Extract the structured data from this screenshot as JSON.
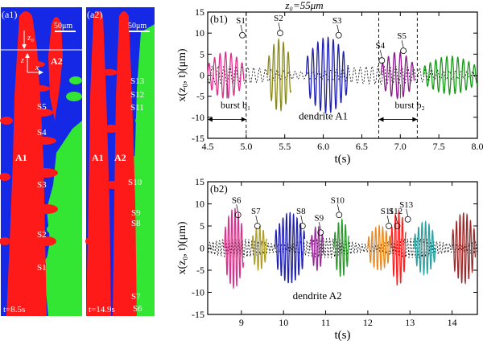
{
  "panel_a1": {
    "label": "(a1)",
    "scale": "50μm",
    "z0": "z₀",
    "axis_z": "z",
    "axis_x": "x",
    "dendrite_A1": "A1",
    "dendrite_A2": "A2",
    "markers": [
      "S5",
      "S4",
      "S3",
      "S2",
      "S1"
    ],
    "time": "t=8.5s"
  },
  "panel_a2": {
    "label": "(a2)",
    "scale": "50μm",
    "dendrite_A1": "A1",
    "dendrite_A2": "A2",
    "markers": [
      "S13",
      "S12",
      "S11",
      "S10",
      "S9",
      "S8",
      "S7",
      "S6"
    ],
    "time": "t=14.9s"
  },
  "figure_title": "z₀=55μm",
  "colors": {
    "background_blue": "#1428e6",
    "dendrite_red": "#ff1a1a",
    "dendrite_green": "#33e633"
  },
  "chart_data": [
    {
      "type": "line",
      "panel": "(b1)",
      "title": "z₀=55μm",
      "xlabel": "t(s)",
      "ylabel": "x(z₀, t)(μm)",
      "xlim": [
        4.5,
        8.0
      ],
      "ylim": [
        -15,
        15
      ],
      "xticks": [
        "4.5",
        "5.0",
        "5.5",
        "6.0",
        "6.5",
        "7.0",
        "7.5",
        "8.0"
      ],
      "yticks": [
        "15",
        "10",
        "5",
        "0",
        "-5",
        "-10",
        "-15"
      ],
      "note": "dendrite A1",
      "bursts": [
        {
          "name": "burst b₁",
          "t_start": 4.5,
          "t_end": 5.0
        },
        {
          "name": "burst b₂",
          "t_start": 6.72,
          "t_end": 7.22
        }
      ],
      "dashed_lines_t": [
        5.0,
        6.72,
        7.22
      ],
      "series": [
        {
          "name": "seg1",
          "color": "#e0308c",
          "t_start": 4.5,
          "t_end": 4.97,
          "amplitude": 5.5,
          "freq_hz": 14
        },
        {
          "name": "seg2",
          "color": "#8a8a1a",
          "t_start": 5.28,
          "t_end": 5.58,
          "amplitude": 8.5,
          "freq_hz": 16
        },
        {
          "name": "seg3",
          "color": "#1f1fb0",
          "t_start": 5.78,
          "t_end": 6.32,
          "amplitude": 9.0,
          "freq_hz": 15
        },
        {
          "name": "seg4",
          "color": "#8a1a8a",
          "t_start": 6.75,
          "t_end": 7.18,
          "amplitude": 5.5,
          "freq_hz": 13
        },
        {
          "name": "seg5",
          "color": "#1a9a1a",
          "t_start": 7.3,
          "t_end": 8.0,
          "amplitude": 4.5,
          "freq_hz": 14
        }
      ],
      "markers": [
        {
          "label": "S1",
          "t": 4.95,
          "x": 9.5
        },
        {
          "label": "S2",
          "t": 5.44,
          "x": 10.0
        },
        {
          "label": "S3",
          "t": 6.2,
          "x": 9.5
        },
        {
          "label": "S4",
          "t": 6.76,
          "x": 3.5
        },
        {
          "label": "S5",
          "t": 7.04,
          "x": 5.8
        }
      ]
    },
    {
      "type": "line",
      "panel": "(b2)",
      "xlabel": "t(s)",
      "ylabel": "x(z₀, t)(μm)",
      "xlim": [
        8.2,
        14.6
      ],
      "ylim": [
        -15,
        15
      ],
      "xticks": [
        "9",
        "10",
        "11",
        "12",
        "13",
        "14"
      ],
      "yticks": [
        "15",
        "10",
        "5",
        "0",
        "-5",
        "-10",
        "-15"
      ],
      "note": "dendrite A2",
      "series": [
        {
          "name": "seg6",
          "color": "#e0308c",
          "t_start": 8.6,
          "t_end": 9.05,
          "amplitude": 9.0,
          "freq_hz": 13
        },
        {
          "name": "seg7",
          "color": "#b0a020",
          "t_start": 9.25,
          "t_end": 9.6,
          "amplitude": 5.0,
          "freq_hz": 12
        },
        {
          "name": "seg8",
          "color": "#2020b0",
          "t_start": 9.8,
          "t_end": 10.5,
          "amplitude": 8.0,
          "freq_hz": 12
        },
        {
          "name": "seg9",
          "color": "#9a2a9a",
          "t_start": 10.65,
          "t_end": 10.95,
          "amplitude": 5.0,
          "freq_hz": 12
        },
        {
          "name": "seg10",
          "color": "#2a9a2a",
          "t_start": 11.2,
          "t_end": 11.55,
          "amplitude": 6.5,
          "freq_hz": 12
        },
        {
          "name": "seg11",
          "color": "#e88a20",
          "t_start": 12.0,
          "t_end": 12.55,
          "amplitude": 5.0,
          "freq_hz": 12
        },
        {
          "name": "seg12",
          "color": "#ff2020",
          "t_start": 12.55,
          "t_end": 12.9,
          "amplitude": 8.5,
          "freq_hz": 12
        },
        {
          "name": "seg13",
          "color": "#2aa0a0",
          "t_start": 13.1,
          "t_end": 13.6,
          "amplitude": 6.0,
          "freq_hz": 12
        },
        {
          "name": "seg14",
          "color": "#9a2a2a",
          "t_start": 14.0,
          "t_end": 14.55,
          "amplitude": 8.0,
          "freq_hz": 12
        }
      ],
      "markers": [
        {
          "label": "S6",
          "t": 8.92,
          "x": 7.5
        },
        {
          "label": "S7",
          "t": 9.38,
          "x": 5.0
        },
        {
          "label": "S8",
          "t": 10.45,
          "x": 5.0
        },
        {
          "label": "S9",
          "t": 10.88,
          "x": 3.5
        },
        {
          "label": "S10",
          "t": 11.32,
          "x": 7.5
        },
        {
          "label": "S11",
          "t": 12.5,
          "x": 5.0
        },
        {
          "label": "S12",
          "t": 12.7,
          "x": 5.0
        },
        {
          "label": "S13",
          "t": 12.95,
          "x": 6.5
        }
      ]
    }
  ]
}
